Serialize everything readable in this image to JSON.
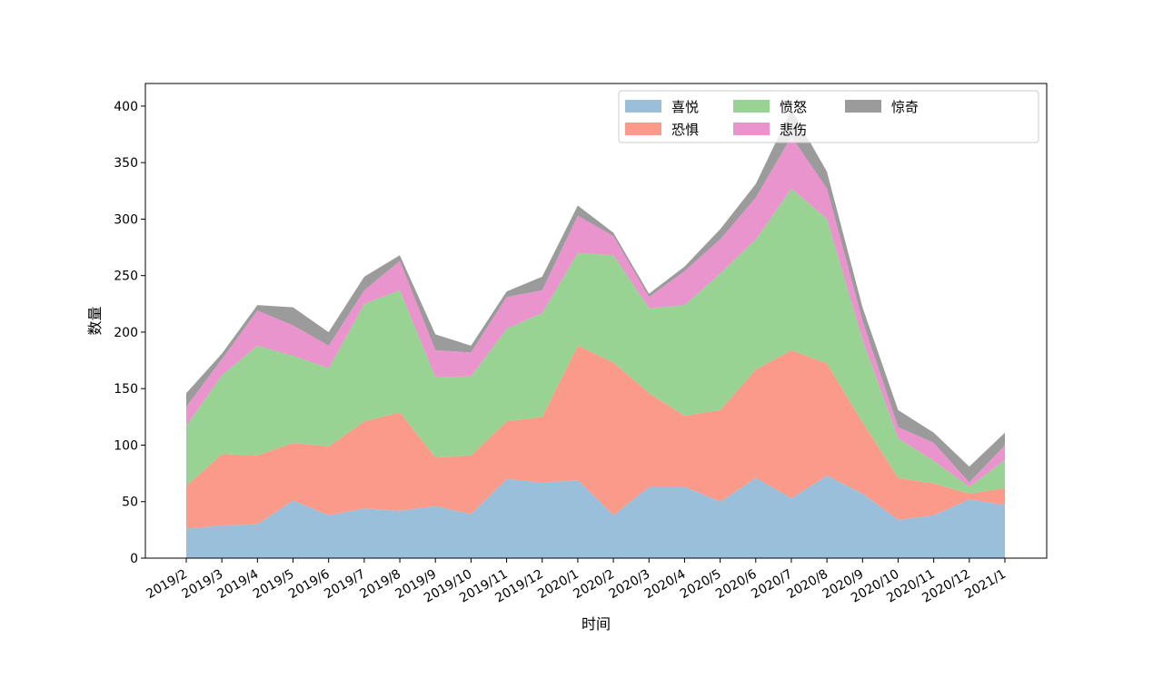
{
  "chart_data": {
    "type": "area",
    "stacked": true,
    "title": "",
    "xlabel": "时间",
    "ylabel": "数量",
    "ylim": [
      0,
      420
    ],
    "yticks": [
      0,
      50,
      100,
      150,
      200,
      250,
      300,
      350,
      400
    ],
    "grid": false,
    "legend": {
      "position": "top-right",
      "columns": 4
    },
    "categories": [
      "2019/2",
      "2019/3",
      "2019/4",
      "2019/5",
      "2019/6",
      "2019/7",
      "2019/8",
      "2019/9",
      "2019/10",
      "2019/11",
      "2019/12",
      "2020/1",
      "2020/2",
      "2020/3",
      "2020/4",
      "2020/5",
      "2020/6",
      "2020/7",
      "2020/8",
      "2020/9",
      "2020/10",
      "2020/11",
      "2020/12",
      "2021/1"
    ],
    "series": [
      {
        "name": "喜悦",
        "color": "#99bfdb",
        "values": [
          26,
          29,
          30,
          51,
          38,
          44,
          42,
          46,
          39,
          70,
          67,
          69,
          38,
          63,
          63,
          50,
          71,
          53,
          73,
          57,
          34,
          38,
          52,
          47
        ]
      },
      {
        "name": "恐惧",
        "color": "#fa9a8a",
        "values": [
          38,
          63,
          61,
          51,
          61,
          77,
          87,
          43,
          52,
          51,
          58,
          119,
          135,
          83,
          63,
          81,
          96,
          131,
          99,
          63,
          37,
          28,
          5,
          15
        ]
      },
      {
        "name": "愤怒",
        "color": "#98d394",
        "values": [
          53,
          70,
          97,
          77,
          69,
          104,
          108,
          71,
          70,
          82,
          92,
          82,
          95,
          75,
          98,
          121,
          115,
          143,
          128,
          73,
          35,
          20,
          6,
          25
        ]
      },
      {
        "name": "悲伤",
        "color": "#e994cc",
        "values": [
          17,
          14,
          31,
          27,
          20,
          12,
          26,
          24,
          21,
          28,
          20,
          33,
          17,
          10,
          30,
          30,
          37,
          46,
          27,
          17,
          10,
          16,
          4,
          13
        ]
      },
      {
        "name": "惊奇",
        "color": "#9b9b9b",
        "values": [
          12,
          5,
          5,
          16,
          12,
          12,
          5,
          14,
          6,
          5,
          12,
          9,
          3,
          3,
          4,
          9,
          12,
          24,
          15,
          12,
          15,
          9,
          14,
          11
        ]
      }
    ]
  }
}
